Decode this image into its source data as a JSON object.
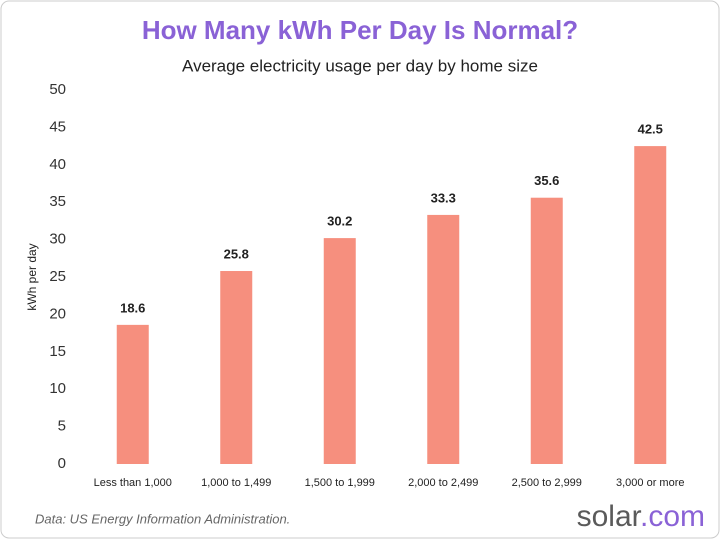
{
  "chart_data": {
    "type": "bar",
    "title": "How Many kWh Per Day Is Normal?",
    "subtitle": "Average electricity usage per day by home size",
    "y_label": "kWh per day",
    "categories": [
      "Less than 1,000",
      "1,000 to 1,499",
      "1,500 to 1,999",
      "2,000 to 2,499",
      "2,500 to 2,999",
      "3,000 or more"
    ],
    "values": [
      18.6,
      25.8,
      30.2,
      33.3,
      35.6,
      42.5
    ],
    "color": "#f68f7e",
    "ylim": [
      0,
      50
    ],
    "yticks": [
      0,
      5,
      10,
      15,
      20,
      25,
      30,
      35,
      40,
      45,
      50
    ],
    "grid": false,
    "source": "Data: US Energy Information Administration.",
    "logo": "solar",
    "logo_suffix": ".com"
  }
}
